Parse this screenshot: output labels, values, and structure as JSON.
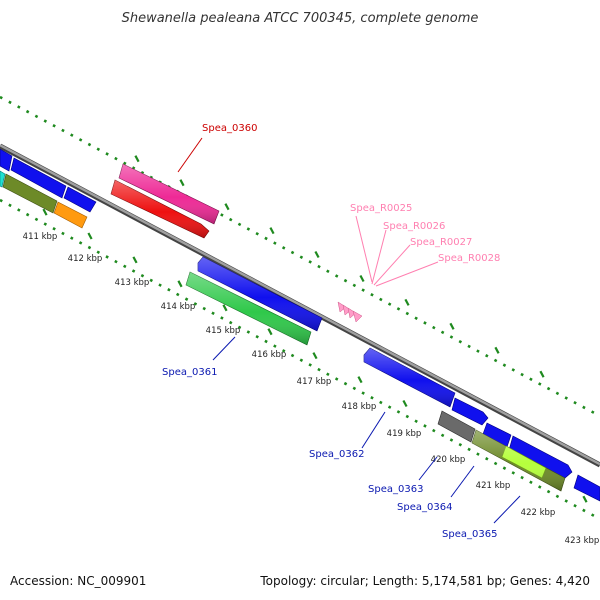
{
  "title": "Shewanella pealeana ATCC 700345, complete genome",
  "footer": {
    "accession": "Accession: NC_009901",
    "topology": "Topology: circular; Length: 5,174,581 bp; Genes: 4,420"
  },
  "colors": {
    "backbone": "#8a8a8a",
    "tick": "#1f8a1f",
    "blue": "#1010ee",
    "red": "#ee1010",
    "pink": "#ee2a96",
    "green": "#2fc84a",
    "olive": "#6d8a28",
    "orange": "#ff9a10",
    "gray": "#6a6a6a",
    "lime": "#b6ff3c",
    "cyan": "#20e0d0",
    "rna": "#ff9cc8",
    "label_blue": "#0a18b0",
    "label_red": "#cc0000",
    "label_pink": "#ff7fb0"
  },
  "kbp_labels": [
    "411 kbp",
    "412 kbp",
    "413 kbp",
    "414 kbp",
    "415 kbp",
    "416 kbp",
    "417 kbp",
    "418 kbp",
    "419 kbp",
    "420 kbp",
    "421 kbp",
    "422 kbp",
    "423 kbp"
  ],
  "gene_labels": {
    "spea_0360": "Spea_0360",
    "spea_0361": "Spea_0361",
    "spea_0362": "Spea_0362",
    "spea_0363": "Spea_0363",
    "spea_0364": "Spea_0364",
    "spea_0365": "Spea_0365",
    "spea_r0025": "Spea_R0025",
    "spea_r0026": "Spea_R0026",
    "spea_r0027": "Spea_R0027",
    "spea_r0028": "Spea_R0028"
  }
}
